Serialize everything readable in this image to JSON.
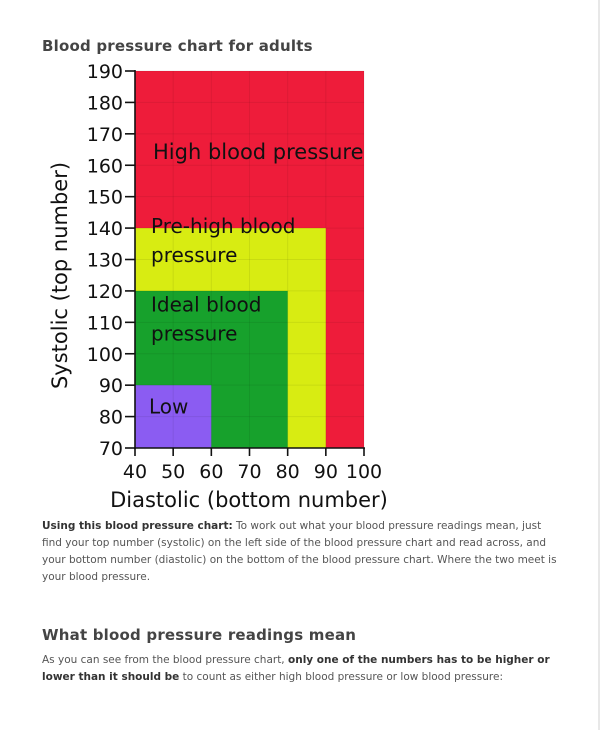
{
  "page": {
    "title": "Blood pressure chart for adults",
    "intro": {
      "lead": "Using this blood pressure chart:",
      "text": " To work out what your blood pressure readings mean, just find your top number (systolic) on the left side of the blood pressure chart and read across, and your bottom number (diastolic) on the bottom of the blood pressure chart. Where the two meet is your blood pressure."
    },
    "section_heading": "What blood pressure readings mean",
    "section_text": {
      "before": "As you can see from the blood pressure chart, ",
      "bold": "only one of the numbers has to be higher or lower than it should be",
      "after": " to count as either high blood pressure or low blood pressure:"
    }
  },
  "chart_data": {
    "type": "area",
    "title": "",
    "xlabel": "Diastolic (bottom number)",
    "ylabel": "Systolic (top number)",
    "xlim": [
      40,
      100
    ],
    "ylim": [
      70,
      190
    ],
    "x_ticks": [
      40,
      50,
      60,
      70,
      80,
      90,
      100
    ],
    "y_ticks": [
      70,
      80,
      90,
      100,
      110,
      120,
      130,
      140,
      150,
      160,
      170,
      180,
      190
    ],
    "grid": true,
    "regions": [
      {
        "label": [
          "High blood pressure"
        ],
        "x_max": 100,
        "y_max": 190,
        "color": "#ee1c3a"
      },
      {
        "label": [
          "Pre-high blood",
          "pressure"
        ],
        "x_max": 90,
        "y_max": 140,
        "color": "#d8ec12"
      },
      {
        "label": [
          "Ideal blood",
          "pressure"
        ],
        "x_max": 80,
        "y_max": 120,
        "color": "#17a12c"
      },
      {
        "label": [
          "Low"
        ],
        "x_max": 60,
        "y_max": 90,
        "color": "#8b5cf2"
      }
    ]
  }
}
